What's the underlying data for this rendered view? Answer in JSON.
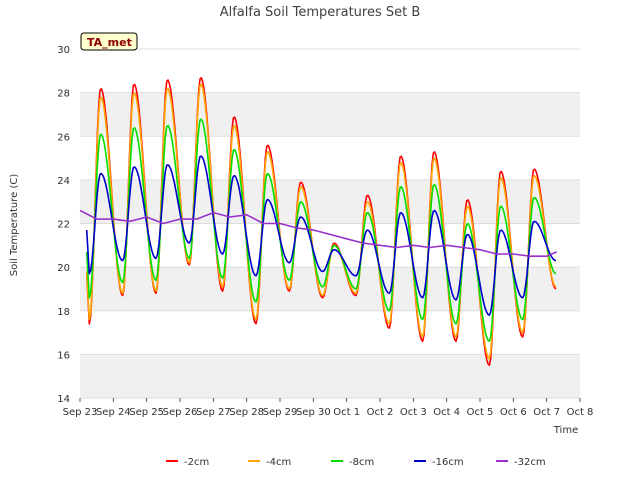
{
  "chart_data": {
    "type": "line",
    "title": "Alfalfa Soil Temperatures Set B",
    "xlabel": "Time",
    "ylabel": "Soil Temperature (C)",
    "station_badge": "TA_met",
    "ylim": [
      14,
      30
    ],
    "xlim": [
      0,
      15
    ],
    "x_ticks": [
      {
        "x": 0,
        "label": "Sep 23"
      },
      {
        "x": 1,
        "label": "Sep 24"
      },
      {
        "x": 2,
        "label": "Sep 25"
      },
      {
        "x": 3,
        "label": "Sep 26"
      },
      {
        "x": 4,
        "label": "Sep 27"
      },
      {
        "x": 5,
        "label": "Sep 28"
      },
      {
        "x": 6,
        "label": "Sep 29"
      },
      {
        "x": 7,
        "label": "Sep 30"
      },
      {
        "x": 8,
        "label": "Oct 1"
      },
      {
        "x": 9,
        "label": "Oct 2"
      },
      {
        "x": 10,
        "label": "Oct 3"
      },
      {
        "x": 11,
        "label": "Oct 4"
      },
      {
        "x": 12,
        "label": "Oct 5"
      },
      {
        "x": 13,
        "label": "Oct 6"
      },
      {
        "x": 14,
        "label": "Oct 7"
      },
      {
        "x": 15,
        "label": "Oct 8"
      }
    ],
    "y_ticks": [
      14,
      16,
      18,
      20,
      22,
      24,
      26,
      28,
      30
    ],
    "grid": true,
    "legend_position": "bottom",
    "daily_extremes_note_x": "x in days since Sep 23 00:00",
    "series": [
      {
        "name": "-2cm",
        "color": "#ff0000",
        "daily": [
          [
            20.0,
            17.4,
            28.2
          ],
          [
            19.6,
            18.7,
            28.4
          ],
          [
            19.5,
            18.8,
            28.6
          ],
          [
            20.4,
            20.1,
            28.7
          ],
          [
            20.3,
            18.9,
            26.9
          ],
          [
            18.8,
            17.4,
            25.6
          ],
          [
            19.6,
            18.9,
            23.9
          ],
          [
            19.2,
            18.6,
            21.1
          ],
          [
            19.0,
            18.7,
            23.3
          ],
          [
            19.0,
            17.2,
            25.1
          ],
          [
            18.8,
            16.6,
            25.3
          ],
          [
            18.6,
            16.6,
            23.1
          ],
          [
            18.0,
            15.5,
            24.4
          ],
          [
            18.7,
            16.8,
            24.5
          ],
          [
            19.0,
            19.0,
            19.0
          ]
        ],
        "start": 19.7
      },
      {
        "name": "-4cm",
        "color": "#ffa500",
        "daily": [
          [
            20.0,
            17.6,
            27.8
          ],
          [
            19.7,
            18.8,
            28.0
          ],
          [
            19.6,
            18.9,
            28.2
          ],
          [
            20.4,
            20.2,
            28.4
          ],
          [
            20.4,
            19.1,
            26.5
          ],
          [
            18.9,
            17.6,
            25.3
          ],
          [
            19.7,
            19.0,
            23.7
          ],
          [
            19.3,
            18.7,
            21.0
          ],
          [
            19.1,
            18.8,
            23.0
          ],
          [
            19.1,
            17.4,
            24.8
          ],
          [
            18.9,
            16.8,
            25.0
          ],
          [
            18.7,
            16.8,
            22.8
          ],
          [
            18.1,
            15.8,
            24.1
          ],
          [
            18.8,
            17.0,
            24.2
          ],
          [
            19.1,
            19.1,
            19.1
          ]
        ],
        "start": 19.8
      },
      {
        "name": "-8cm",
        "color": "#00e000",
        "daily": [
          [
            20.6,
            18.6,
            26.1
          ],
          [
            20.0,
            19.3,
            26.4
          ],
          [
            20.0,
            19.4,
            26.5
          ],
          [
            20.8,
            20.4,
            26.8
          ],
          [
            20.6,
            19.5,
            25.4
          ],
          [
            19.4,
            18.4,
            24.3
          ],
          [
            20.0,
            19.4,
            23.0
          ],
          [
            19.6,
            19.1,
            21.0
          ],
          [
            19.4,
            19.0,
            22.5
          ],
          [
            19.5,
            18.0,
            23.7
          ],
          [
            19.4,
            17.6,
            23.8
          ],
          [
            19.2,
            17.4,
            22.0
          ],
          [
            18.8,
            16.6,
            22.8
          ],
          [
            19.3,
            17.6,
            23.2
          ],
          [
            19.7,
            19.7,
            19.7
          ]
        ],
        "start": 20.7
      },
      {
        "name": "-16cm",
        "color": "#0000cd",
        "daily": [
          [
            21.6,
            19.7,
            24.3
          ],
          [
            21.3,
            20.3,
            24.6
          ],
          [
            21.2,
            20.4,
            24.7
          ],
          [
            21.7,
            21.1,
            25.1
          ],
          [
            21.5,
            20.6,
            24.2
          ],
          [
            20.7,
            19.6,
            23.1
          ],
          [
            21.0,
            20.2,
            22.3
          ],
          [
            20.7,
            19.8,
            20.8
          ],
          [
            20.5,
            19.6,
            21.7
          ],
          [
            20.4,
            18.8,
            22.5
          ],
          [
            20.3,
            18.6,
            22.6
          ],
          [
            20.2,
            18.5,
            21.5
          ],
          [
            19.8,
            17.8,
            21.7
          ],
          [
            20.1,
            18.6,
            22.1
          ],
          [
            20.3,
            20.3,
            20.3
          ]
        ],
        "start": 21.7
      },
      {
        "name": "-32cm",
        "color": "#9932cc",
        "smooth": [
          [
            0.0,
            22.6
          ],
          [
            0.5,
            22.2
          ],
          [
            1.0,
            22.2
          ],
          [
            1.5,
            22.1
          ],
          [
            2.0,
            22.3
          ],
          [
            2.5,
            22.0
          ],
          [
            3.0,
            22.2
          ],
          [
            3.5,
            22.2
          ],
          [
            4.0,
            22.5
          ],
          [
            4.5,
            22.3
          ],
          [
            5.0,
            22.4
          ],
          [
            5.5,
            22.0
          ],
          [
            6.0,
            22.0
          ],
          [
            6.5,
            21.8
          ],
          [
            7.0,
            21.7
          ],
          [
            7.5,
            21.5
          ],
          [
            8.0,
            21.3
          ],
          [
            8.5,
            21.1
          ],
          [
            9.0,
            21.0
          ],
          [
            9.5,
            20.9
          ],
          [
            10.0,
            21.0
          ],
          [
            10.5,
            20.9
          ],
          [
            11.0,
            21.0
          ],
          [
            11.5,
            20.9
          ],
          [
            12.0,
            20.8
          ],
          [
            12.5,
            20.6
          ],
          [
            13.0,
            20.6
          ],
          [
            13.5,
            20.5
          ],
          [
            14.0,
            20.5
          ],
          [
            14.3,
            20.7
          ]
        ],
        "start": 22.6
      }
    ]
  }
}
